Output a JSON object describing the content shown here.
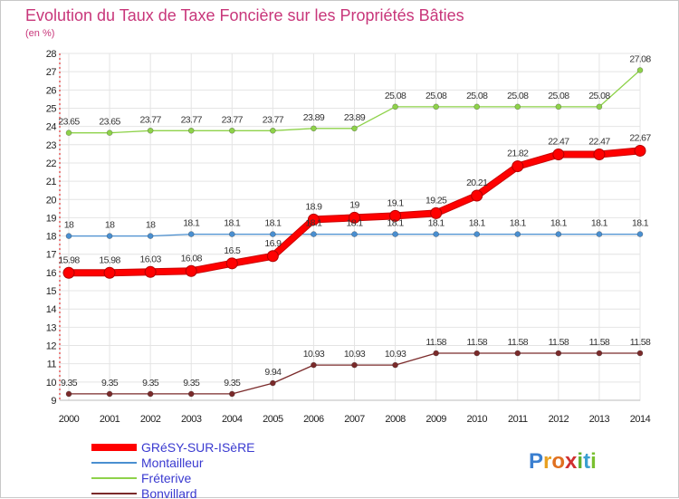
{
  "chart_data": {
    "type": "line",
    "title": "Evolution du Taux de Taxe Foncière sur les Propriétés Bâties",
    "subtitle": "(en %)",
    "x": [
      "2000",
      "2001",
      "2002",
      "2003",
      "2004",
      "2005",
      "2006",
      "2007",
      "2008",
      "2009",
      "2010",
      "2011",
      "2012",
      "2013",
      "2014"
    ],
    "ylim": [
      9,
      28
    ],
    "yticks": [
      9,
      10,
      11,
      12,
      13,
      14,
      15,
      16,
      17,
      18,
      19,
      20,
      21,
      22,
      23,
      24,
      25,
      26,
      27,
      28
    ],
    "grid": true,
    "legend_position": "bottom-left",
    "series": [
      {
        "name": "GRéSY-SUR-ISèRE",
        "color": "#ff0000",
        "values": [
          15.98,
          15.98,
          16.03,
          16.08,
          16.5,
          16.9,
          18.9,
          19,
          19.1,
          19.25,
          20.21,
          21.82,
          22.47,
          22.47,
          22.67
        ],
        "labels": [
          "15.98",
          "15.98",
          "16.03",
          "16.08",
          "16.5",
          "16.9",
          "18.9",
          "19",
          "19.1",
          "19.25",
          "20.21",
          "21.82",
          "22.47",
          "22.47",
          "22.67"
        ]
      },
      {
        "name": "Montailleur",
        "color": "#4a8fd0",
        "values": [
          18,
          18,
          18,
          18.1,
          18.1,
          18.1,
          18.1,
          18.1,
          18.1,
          18.1,
          18.1,
          18.1,
          18.1,
          18.1,
          18.1
        ],
        "labels": [
          "18",
          "18",
          "18",
          "18.1",
          "18.1",
          "18.1",
          "18.1",
          "18.1",
          "18.1",
          "18.1",
          "18.1",
          "18.1",
          "18.1",
          "18.1",
          "18.1"
        ]
      },
      {
        "name": "Fréterive",
        "color": "#8ed24a",
        "values": [
          23.65,
          23.65,
          23.77,
          23.77,
          23.77,
          23.77,
          23.89,
          23.89,
          25.08,
          25.08,
          25.08,
          25.08,
          25.08,
          25.08,
          27.08
        ],
        "labels": [
          "23.65",
          "23.65",
          "23.77",
          "23.77",
          "23.77",
          "23.77",
          "23.89",
          "23.89",
          "25.08",
          "25.08",
          "25.08",
          "25.08",
          "25.08",
          "25.08",
          "27.08"
        ]
      },
      {
        "name": "Bonvillard",
        "color": "#7a2a2a",
        "values": [
          9.35,
          9.35,
          9.35,
          9.35,
          9.35,
          9.94,
          10.93,
          10.93,
          10.93,
          11.58,
          11.58,
          11.58,
          11.58,
          11.58,
          11.58
        ],
        "labels": [
          "9.35",
          "9.35",
          "9.35",
          "9.35",
          "9.35",
          "9.94",
          "10.93",
          "10.93",
          "10.93",
          "11.58",
          "11.58",
          "11.58",
          "11.58",
          "11.58",
          "11.58"
        ]
      }
    ]
  },
  "logo": {
    "text": "Proxiti",
    "letters": [
      {
        "ch": "P",
        "color": "#3a7fd0"
      },
      {
        "ch": "r",
        "color": "#e8a020"
      },
      {
        "ch": "o",
        "color": "#e07020"
      },
      {
        "ch": "x",
        "color": "#d03030"
      },
      {
        "ch": "i",
        "color": "#60b030"
      },
      {
        "ch": "t",
        "color": "#3a9fd0"
      },
      {
        "ch": "i",
        "color": "#7ac030"
      }
    ]
  }
}
